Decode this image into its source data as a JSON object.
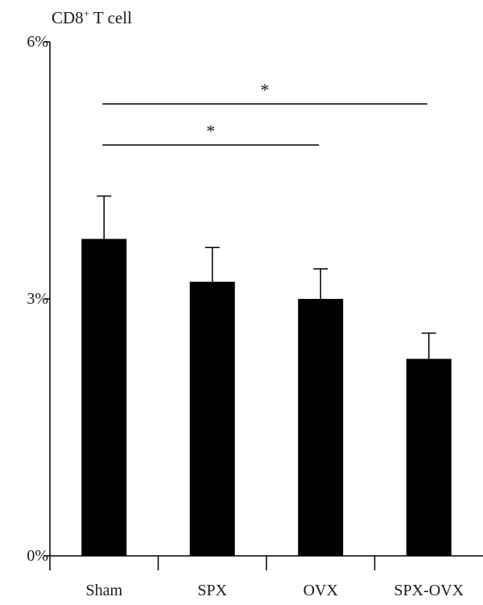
{
  "chart_data": {
    "type": "bar",
    "title": "CD8",
    "title_sup": "+",
    "title_suffix": " T cell",
    "categories": [
      "Sham",
      "SPX",
      "OVX",
      "SPX-OVX"
    ],
    "values": [
      3.7,
      3.2,
      3.0,
      2.3
    ],
    "error_upper": [
      4.2,
      3.6,
      3.35,
      2.6
    ],
    "ylim": [
      0,
      6
    ],
    "yticks": [
      0,
      3,
      6
    ],
    "ytick_labels": [
      "0%",
      "3%",
      "6%"
    ],
    "xlabel": "",
    "ylabel": "",
    "bar_color": "#000000",
    "grid": false,
    "significance": [
      {
        "from": "Sham",
        "to": "SPX-OVX",
        "label": "*"
      },
      {
        "from": "Sham",
        "to": "OVX",
        "label": "*"
      }
    ]
  }
}
